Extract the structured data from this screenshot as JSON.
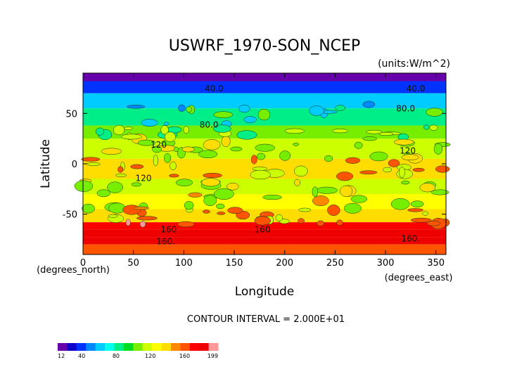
{
  "chart_data": {
    "type": "heatmap",
    "title": "USWRF_1970-SON_NCEP",
    "units_label": "(units:W/m^2)",
    "xlabel": "Longitude",
    "ylabel": "Latitude",
    "x_unit_label": "(degrees_east)",
    "y_unit_label": "(degrees_north)",
    "xlim": [
      0,
      360
    ],
    "ylim": [
      -90,
      90
    ],
    "x_ticks": [
      0,
      50,
      100,
      150,
      200,
      250,
      300,
      350
    ],
    "y_ticks": [
      -50,
      0,
      50
    ],
    "contour_interval_text": "CONTOUR INTERVAL = 2.000E+01",
    "contour_labels": [
      "40.0",
      "80.0",
      "120",
      "160",
      "160."
    ],
    "colorbar": {
      "min_label": "12",
      "max_label": "199",
      "tick_labels": [
        "40",
        "80",
        "120",
        "160"
      ],
      "min": 12,
      "max": 199
    },
    "zonal_bands": [
      {
        "lat_range": [
          82,
          90
        ],
        "value": 20
      },
      {
        "lat_range": [
          70,
          82
        ],
        "value": 40
      },
      {
        "lat_range": [
          55,
          70
        ],
        "value": 65
      },
      {
        "lat_range": [
          38,
          55
        ],
        "value": 85
      },
      {
        "lat_range": [
          25,
          38
        ],
        "value": 100
      },
      {
        "lat_range": [
          5,
          25
        ],
        "value": 120
      },
      {
        "lat_range": [
          -15,
          5
        ],
        "value": 135
      },
      {
        "lat_range": [
          -30,
          -15
        ],
        "value": 120
      },
      {
        "lat_range": [
          -45,
          -30
        ],
        "value": 130
      },
      {
        "lat_range": [
          -58,
          -45
        ],
        "value": 140
      },
      {
        "lat_range": [
          -65,
          -58
        ],
        "value": 175
      },
      {
        "lat_range": [
          -73,
          -65
        ],
        "value": 180
      },
      {
        "lat_range": [
          -80,
          -73
        ],
        "value": 185
      },
      {
        "lat_range": [
          -90,
          -80
        ],
        "value": 155
      }
    ],
    "palette": [
      "#6600aa",
      "#1100cc",
      "#0033ff",
      "#0088ff",
      "#00ccff",
      "#00ffee",
      "#00ee88",
      "#00dd22",
      "#77ee00",
      "#ccff00",
      "#ffff00",
      "#ffdd00",
      "#ff8800",
      "#ff5500",
      "#ff0000",
      "#ee0000",
      "#ff9999"
    ]
  }
}
